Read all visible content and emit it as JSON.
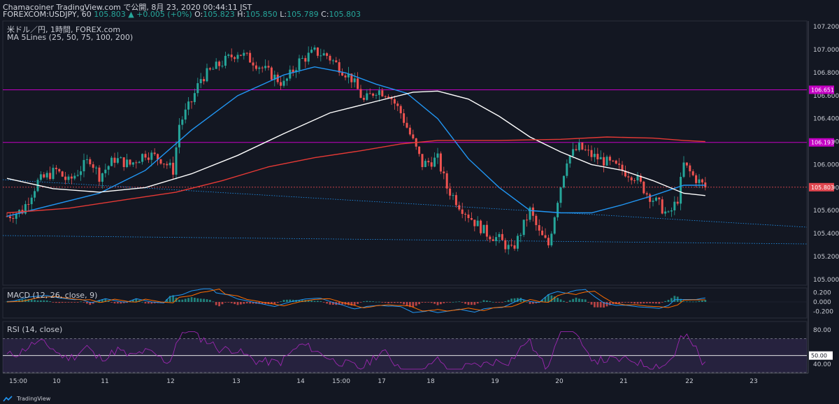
{
  "header": {
    "title": "Chamacoiner TradingView.com で公開, 8月 23, 2020 00:44:11 JST",
    "symbol": "FOREXCOM:USDJPY, 60",
    "last": "105.803",
    "change": "▲ +0.005 (+0%)",
    "o_label": "O:",
    "o": "105.823",
    "h_label": "H:",
    "h": "105.850",
    "l_label": "L:",
    "l": "105.789",
    "c_label": "C:",
    "c": "105.803"
  },
  "legend": {
    "instrument": "米ドル／円, 1時間, FOREX.com",
    "ma": "MA 5Lines (25, 50, 75, 100, 200)",
    "macd": "MACD (12, 26, close, 9)",
    "rsi": "RSI (14, close)"
  },
  "colors": {
    "background": "#131722",
    "up": "#26a69a",
    "down": "#ef5350",
    "ma_blue": "#2196f3",
    "ma_white": "#ffffff",
    "ma_red": "#e53935",
    "level_line": "#c400c4",
    "rsi_line": "#9c27b0",
    "macd_line": "#2196f3",
    "signal_line": "#ff6d00",
    "price_tag": "#e0464f"
  },
  "price_axis": {
    "labels": [
      "107.200",
      "107.000",
      "106.800",
      "106.600",
      "106.400",
      "106.200",
      "106.000",
      "105.800",
      "105.600",
      "105.400",
      "105.200",
      "105.000"
    ],
    "tags": [
      {
        "label": "106.651",
        "value": 106.651,
        "kind": "level"
      },
      {
        "label": "106.193",
        "value": 106.193,
        "kind": "level"
      },
      {
        "label": "105.803",
        "value": 105.803,
        "kind": "last"
      }
    ]
  },
  "macd_axis": {
    "labels": [
      "0.200",
      "0.000",
      "-0.200"
    ]
  },
  "rsi_axis": {
    "labels": [
      "80.00",
      "50.00",
      "40.00"
    ],
    "tag": "50.00"
  },
  "time_axis": {
    "labels": [
      "15:00",
      "10",
      "11",
      "12",
      "13",
      "14",
      "15:00",
      "17",
      "18",
      "19",
      "20",
      "21",
      "22",
      "23"
    ]
  },
  "footer": {
    "brand": "TradingView"
  },
  "chart_data": {
    "type": "candlestick",
    "title": "米ドル／円, 1時間, FOREX.com",
    "symbol": "FOREXCOM:USDJPY",
    "interval": "60",
    "ylim": [
      104.95,
      107.25
    ],
    "x_ticks": [
      "15:00",
      "10",
      "11",
      "12",
      "13",
      "14",
      "15:00",
      "17",
      "18",
      "19",
      "20",
      "21",
      "22",
      "23"
    ],
    "price_path": [
      [
        0,
        105.55
      ],
      [
        5,
        105.6
      ],
      [
        10,
        105.85
      ],
      [
        16,
        105.95
      ],
      [
        20,
        105.85
      ],
      [
        27,
        106.05
      ],
      [
        30,
        105.9
      ],
      [
        35,
        106.05
      ],
      [
        40,
        106.0
      ],
      [
        45,
        106.1
      ],
      [
        50,
        106.05
      ],
      [
        54,
        105.95
      ],
      [
        56,
        106.35
      ],
      [
        60,
        106.55
      ],
      [
        63,
        106.75
      ],
      [
        68,
        106.85
      ],
      [
        75,
        106.98
      ],
      [
        80,
        106.9
      ],
      [
        85,
        106.8
      ],
      [
        90,
        106.7
      ],
      [
        95,
        106.9
      ],
      [
        100,
        106.98
      ],
      [
        104,
        106.95
      ],
      [
        108,
        106.85
      ],
      [
        112,
        106.75
      ],
      [
        116,
        106.55
      ],
      [
        120,
        106.65
      ],
      [
        124,
        106.62
      ],
      [
        128,
        106.45
      ],
      [
        132,
        106.2
      ],
      [
        135,
        106.0
      ],
      [
        140,
        106.05
      ],
      [
        143,
        105.8
      ],
      [
        147,
        105.65
      ],
      [
        152,
        105.5
      ],
      [
        156,
        105.4
      ],
      [
        160,
        105.35
      ],
      [
        164,
        105.25
      ],
      [
        166,
        105.35
      ],
      [
        170,
        105.6
      ],
      [
        173,
        105.4
      ],
      [
        176,
        105.3
      ],
      [
        179,
        105.7
      ],
      [
        182,
        106.05
      ],
      [
        186,
        106.15
      ],
      [
        190,
        106.08
      ],
      [
        195,
        106.02
      ],
      [
        200,
        105.95
      ],
      [
        204,
        105.9
      ],
      [
        208,
        105.75
      ],
      [
        212,
        105.65
      ],
      [
        215,
        105.55
      ],
      [
        218,
        105.7
      ],
      [
        220,
        106.0
      ],
      [
        223,
        105.9
      ],
      [
        225,
        105.85
      ],
      [
        227,
        105.8
      ]
    ],
    "moving_averages": [
      {
        "name": "MA 25 (blue)",
        "points": [
          [
            0,
            105.55
          ],
          [
            30,
            105.75
          ],
          [
            45,
            105.95
          ],
          [
            60,
            106.3
          ],
          [
            75,
            106.6
          ],
          [
            90,
            106.78
          ],
          [
            100,
            106.85
          ],
          [
            110,
            106.8
          ],
          [
            120,
            106.7
          ],
          [
            130,
            106.62
          ],
          [
            140,
            106.4
          ],
          [
            150,
            106.05
          ],
          [
            160,
            105.8
          ],
          [
            170,
            105.6
          ],
          [
            180,
            105.58
          ],
          [
            190,
            105.58
          ],
          [
            200,
            105.65
          ],
          [
            210,
            105.73
          ],
          [
            220,
            105.82
          ],
          [
            227,
            105.82
          ]
        ]
      },
      {
        "name": "MA 75 (white)",
        "points": [
          [
            0,
            105.88
          ],
          [
            15,
            105.79
          ],
          [
            30,
            105.76
          ],
          [
            45,
            105.8
          ],
          [
            60,
            105.92
          ],
          [
            75,
            106.08
          ],
          [
            90,
            106.27
          ],
          [
            105,
            106.45
          ],
          [
            120,
            106.55
          ],
          [
            132,
            106.63
          ],
          [
            140,
            106.64
          ],
          [
            150,
            106.57
          ],
          [
            160,
            106.42
          ],
          [
            170,
            106.24
          ],
          [
            180,
            106.11
          ],
          [
            190,
            106.0
          ],
          [
            200,
            105.95
          ],
          [
            210,
            105.86
          ],
          [
            220,
            105.75
          ],
          [
            227,
            105.73
          ]
        ]
      },
      {
        "name": "MA 200 (red)",
        "points": [
          [
            0,
            105.58
          ],
          [
            20,
            105.62
          ],
          [
            40,
            105.7
          ],
          [
            55,
            105.76
          ],
          [
            70,
            105.86
          ],
          [
            85,
            105.98
          ],
          [
            100,
            106.06
          ],
          [
            115,
            106.12
          ],
          [
            128,
            106.18
          ],
          [
            140,
            106.21
          ],
          [
            160,
            106.21
          ],
          [
            180,
            106.22
          ],
          [
            195,
            106.24
          ],
          [
            210,
            106.23
          ],
          [
            220,
            106.21
          ],
          [
            227,
            106.2
          ]
        ]
      }
    ],
    "horizontal_levels": [
      106.651,
      106.193,
      105.803
    ],
    "macd": {
      "ylim": [
        -0.3,
        0.3
      ],
      "ticks": [
        "0.200",
        "0.000",
        "-0.200"
      ]
    },
    "rsi": {
      "ylim": [
        30,
        90
      ],
      "bands": [
        70,
        30
      ],
      "mid": 50,
      "ticks": [
        "80.00",
        "50.00",
        "40.00"
      ]
    }
  }
}
